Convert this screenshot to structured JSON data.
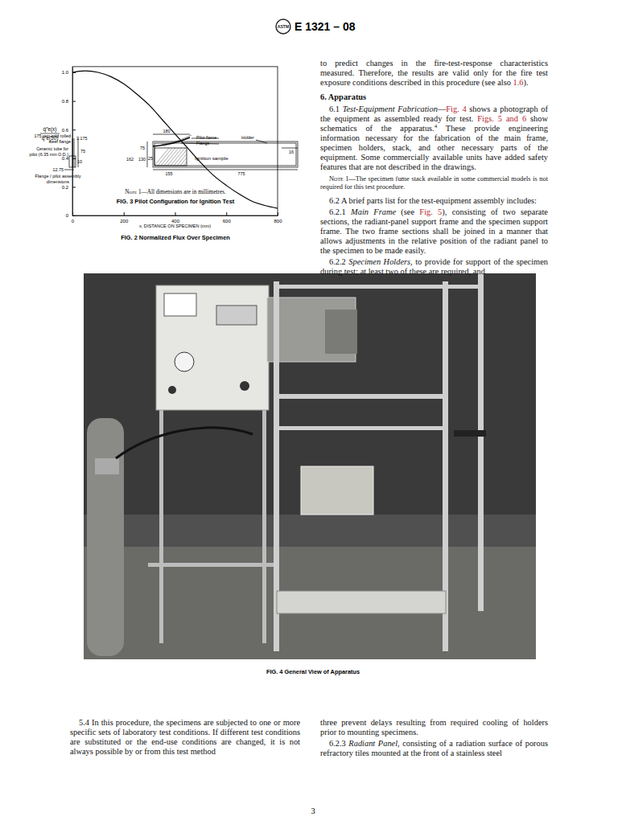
{
  "header": {
    "logo": "ASTM",
    "designation": "E 1321 – 08"
  },
  "chart_data": {
    "type": "line",
    "title": "FIG. 2 Normalized Flux Over Specimen",
    "xlabel": "x, DISTANCE ON SPECIMEN (mm)",
    "ylabel": [
      "q̇″e(x)",
      "q̇″e(50)"
    ],
    "x": [
      0,
      25,
      50,
      100,
      150,
      200,
      250,
      300,
      350,
      400,
      450,
      500,
      550,
      600,
      650,
      700,
      750,
      800
    ],
    "values": [
      1.0,
      1.008,
      1.01,
      1.0,
      0.97,
      0.92,
      0.85,
      0.77,
      0.67,
      0.57,
      0.47,
      0.37,
      0.28,
      0.21,
      0.15,
      0.1,
      0.07,
      0.05
    ],
    "color": "#000000",
    "xlim": [
      0,
      800
    ],
    "xticks": [
      0,
      200,
      400,
      600,
      800
    ],
    "ylim": [
      0,
      1.04
    ],
    "yticks": [
      0,
      0.2,
      0.4,
      0.6,
      0.8,
      {
        "value": 1,
        "label": "1.0"
      }
    ],
    "grid": false
  },
  "figure3": {
    "labels": {
      "flange_top": [
        "175 mm cold rolled",
        "steel flange"
      ],
      "flange_thickness": "3.175",
      "tube": [
        "Ceramic tube for",
        "pilot (6.35 mm O.D.)"
      ],
      "tube_height": "75",
      "tube_width": "10",
      "offset": "12.75",
      "assembly": [
        "Flange / pilot assembly",
        "dimensions"
      ],
      "pilot_length": "180",
      "pilot_flame": "Pilot flame",
      "flange": "Flange",
      "holder": "Holder",
      "h75": "75",
      "h25": "25",
      "h162": "162",
      "h130": "130",
      "sample": "Ignition sample",
      "w16": "16",
      "w155": "155",
      "w775": "775"
    },
    "note": [
      {
        "text": "Note 1",
        "style": "smallcaps"
      },
      {
        "text": "—All dimensions are in millimetres.",
        "style": "plain"
      }
    ],
    "caption": "FIG. 3 Pilot Configuration for Ignition Test"
  },
  "figure4": {
    "caption": "FIG. 4 General View of Apparatus"
  },
  "right_column": [
    {
      "kind": "continued",
      "runs": [
        {
          "text": "to predict changes in the fire-test-response characteristics measured. Therefore, the results are valid only for the fire test exposure conditions described in this procedure (see also ",
          "style": "plain"
        },
        {
          "text": "1.6",
          "style": "link"
        },
        {
          "text": ").",
          "style": "plain"
        }
      ]
    },
    {
      "kind": "heading",
      "runs": [
        {
          "text": "6. Apparatus",
          "style": "plain"
        }
      ]
    },
    {
      "kind": "para",
      "runs": [
        {
          "text": "6.1 ",
          "style": "plain"
        },
        {
          "text": "Test-Equipment Fabrication",
          "style": "italic"
        },
        {
          "text": "—",
          "style": "plain"
        },
        {
          "text": "Fig. 4",
          "style": "link"
        },
        {
          "text": " shows a photograph of the equipment as assembled ready for test. ",
          "style": "plain"
        },
        {
          "text": "Figs. 5 and 6",
          "style": "link"
        },
        {
          "text": " show schematics of the apparatus.",
          "style": "plain"
        },
        {
          "text": "4",
          "style": "sup"
        },
        {
          "text": " These provide engineering information necessary for the fabrication of the main frame, specimen holders, stack, and other necessary parts of the equipment. Some commercially available units have added safety features that are not described in the drawings.",
          "style": "plain"
        }
      ]
    },
    {
      "kind": "note",
      "runs": [
        {
          "text": "Note 1",
          "style": "smallcaps"
        },
        {
          "text": "—The specimen fume stack available in some commercial models is not required for this test procedure.",
          "style": "plain"
        }
      ]
    },
    {
      "kind": "para",
      "runs": [
        {
          "text": "6.2 A brief parts list for the test-equipment assembly includes:",
          "style": "plain"
        }
      ]
    },
    {
      "kind": "para",
      "runs": [
        {
          "text": "6.2.1 ",
          "style": "plain"
        },
        {
          "text": "Main Frame",
          "style": "italic"
        },
        {
          "text": " (see ",
          "style": "plain"
        },
        {
          "text": "Fig. 5",
          "style": "link"
        },
        {
          "text": "), consisting of two separate sections, the radiant-panel support frame and the specimen support frame. The two frame sections shall be joined in a manner that allows adjustments in the relative position of the radiant panel to the specimen to be made easily.",
          "style": "plain"
        }
      ]
    },
    {
      "kind": "para",
      "runs": [
        {
          "text": "6.2.2 ",
          "style": "plain"
        },
        {
          "text": "Specimen Holders",
          "style": "italic"
        },
        {
          "text": ", to provide for support of the specimen during test; at least two of these are required, and",
          "style": "plain"
        }
      ]
    }
  ],
  "bottom_left": [
    {
      "kind": "para",
      "runs": [
        {
          "text": "5.4 In this procedure, the specimens are subjected to one or more specific sets of laboratory test conditions. If different test conditions are substituted or the end-use conditions are changed, it is not always possible by or from this test method",
          "style": "plain"
        }
      ]
    }
  ],
  "bottom_right": [
    {
      "kind": "continued",
      "runs": [
        {
          "text": "three prevent delays resulting from required cooling of holders prior to mounting specimens.",
          "style": "plain"
        }
      ]
    },
    {
      "kind": "para",
      "runs": [
        {
          "text": "6.2.3 ",
          "style": "plain"
        },
        {
          "text": "Radiant Panel",
          "style": "italic"
        },
        {
          "text": ", consisting of a radiation surface of porous refractory tiles mounted at the front of a stainless steel",
          "style": "plain"
        }
      ]
    }
  ],
  "page_number": "3"
}
